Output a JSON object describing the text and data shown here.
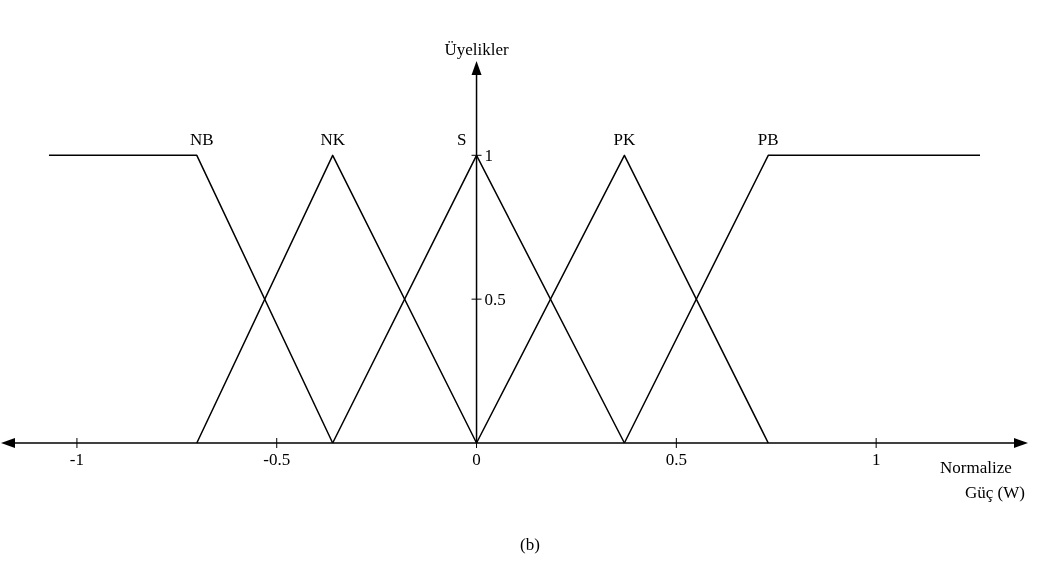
{
  "chart_data": {
    "type": "line",
    "xlabel": "Normalize Güç (W)",
    "ylabel": "Üyelikler",
    "xlim": [
      -1.18,
      1.36
    ],
    "xticks": [
      -1,
      -0.5,
      0,
      0.5,
      1
    ],
    "ylim": [
      0,
      1.3
    ],
    "yticks": [
      0.5,
      1
    ],
    "grid": false,
    "legend": false,
    "marker": "none",
    "line_style": "solid",
    "series": [
      {
        "name": "NB",
        "color": "#000000",
        "x": [
          -1.07,
          -0.7,
          -0.36
        ],
        "values": [
          1,
          1,
          0
        ]
      },
      {
        "name": "NK",
        "color": "#000000",
        "x": [
          -0.7,
          -0.36,
          0
        ],
        "values": [
          0,
          1,
          0
        ]
      },
      {
        "name": "S",
        "color": "#000000",
        "x": [
          -0.36,
          0,
          0.37
        ],
        "values": [
          0,
          1,
          0
        ]
      },
      {
        "name": "PK",
        "color": "#000000",
        "x": [
          0,
          0.37,
          0.73
        ],
        "values": [
          0,
          1,
          0
        ]
      },
      {
        "name": "PB",
        "color": "#000000",
        "x": [
          0.37,
          0.73,
          1.26
        ],
        "values": [
          0,
          1,
          1
        ]
      }
    ],
    "annotations": [
      "(b)"
    ]
  }
}
